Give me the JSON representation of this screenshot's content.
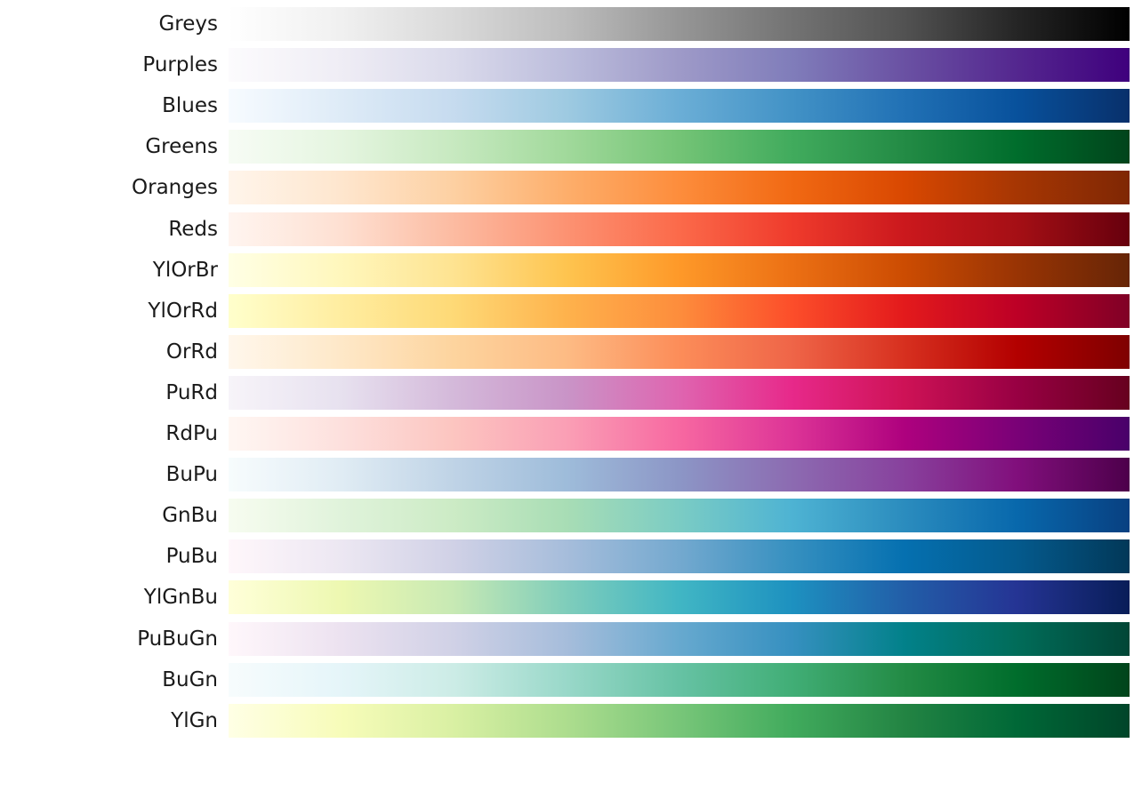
{
  "chart_data": {
    "type": "heatmap",
    "title": "",
    "grid": false,
    "value_range": [
      0,
      1
    ],
    "colormaps": [
      {
        "name": "Greys",
        "colors": [
          "#ffffff",
          "#f0f0f0",
          "#d9d9d9",
          "#bdbdbd",
          "#969696",
          "#737373",
          "#525252",
          "#252525",
          "#000000"
        ]
      },
      {
        "name": "Purples",
        "colors": [
          "#fcfbfd",
          "#efedf5",
          "#dadaeb",
          "#bcbddc",
          "#9e9ac8",
          "#807dba",
          "#6a51a3",
          "#54278f",
          "#3f007d"
        ]
      },
      {
        "name": "Blues",
        "colors": [
          "#f7fbff",
          "#deebf7",
          "#c6dbef",
          "#9ecae1",
          "#6baed6",
          "#4292c6",
          "#2171b5",
          "#08519c",
          "#08306b"
        ]
      },
      {
        "name": "Greens",
        "colors": [
          "#f7fcf5",
          "#e5f5e0",
          "#c7e9c0",
          "#a1d99b",
          "#74c476",
          "#41ab5d",
          "#238b45",
          "#006d2c",
          "#00441b"
        ]
      },
      {
        "name": "Oranges",
        "colors": [
          "#fff5eb",
          "#fee6ce",
          "#fdd0a2",
          "#fdae6b",
          "#fd8d3c",
          "#f16913",
          "#d94801",
          "#a63603",
          "#7f2704"
        ]
      },
      {
        "name": "Reds",
        "colors": [
          "#fff5f0",
          "#fee0d2",
          "#fcbba1",
          "#fc9272",
          "#fb6a4a",
          "#ef3b2c",
          "#cb181d",
          "#a50f15",
          "#67000d"
        ]
      },
      {
        "name": "YlOrBr",
        "colors": [
          "#ffffe5",
          "#fff7bc",
          "#fee391",
          "#fec44f",
          "#fe9929",
          "#ec7014",
          "#cc4c02",
          "#993404",
          "#662506"
        ]
      },
      {
        "name": "YlOrRd",
        "colors": [
          "#ffffcc",
          "#ffeda0",
          "#fed976",
          "#feb24c",
          "#fd8d3c",
          "#fc4e2a",
          "#e31a1c",
          "#bd0026",
          "#800026"
        ]
      },
      {
        "name": "OrRd",
        "colors": [
          "#fff7ec",
          "#fee8c8",
          "#fdd49e",
          "#fdbb84",
          "#fc8d59",
          "#ef6548",
          "#d7301f",
          "#b30000",
          "#7f0000"
        ]
      },
      {
        "name": "PuRd",
        "colors": [
          "#f7f4f9",
          "#e7e1ef",
          "#d4b9da",
          "#c994c7",
          "#df65b0",
          "#e7298a",
          "#ce1256",
          "#980043",
          "#67001f"
        ]
      },
      {
        "name": "RdPu",
        "colors": [
          "#fff7f3",
          "#fde0dd",
          "#fcc5c0",
          "#fa9fb5",
          "#f768a1",
          "#dd3497",
          "#ae017e",
          "#7a0177",
          "#49006a"
        ]
      },
      {
        "name": "BuPu",
        "colors": [
          "#f7fcfd",
          "#e0ecf4",
          "#bfd3e6",
          "#9ebcda",
          "#8c96c6",
          "#8c6bb1",
          "#88419d",
          "#810f7c",
          "#4d004b"
        ]
      },
      {
        "name": "GnBu",
        "colors": [
          "#f7fcf0",
          "#e0f3db",
          "#ccebc5",
          "#a8ddb5",
          "#7bccc4",
          "#4eb3d3",
          "#2b8cbe",
          "#0868ac",
          "#084081"
        ]
      },
      {
        "name": "PuBu",
        "colors": [
          "#fff7fb",
          "#ece7f2",
          "#d0d1e6",
          "#a6bddb",
          "#74a9cf",
          "#3690c0",
          "#0570b0",
          "#045a8d",
          "#023858"
        ]
      },
      {
        "name": "YlGnBu",
        "colors": [
          "#ffffd9",
          "#edf8b1",
          "#c7e9b4",
          "#7fcdbb",
          "#41b6c4",
          "#1d91c0",
          "#225ea8",
          "#253494",
          "#081d58"
        ]
      },
      {
        "name": "PuBuGn",
        "colors": [
          "#fff7fb",
          "#ece2f0",
          "#d0d1e6",
          "#a6bddb",
          "#67a9cf",
          "#3690c0",
          "#02818a",
          "#016c59",
          "#014636"
        ]
      },
      {
        "name": "BuGn",
        "colors": [
          "#f7fcfd",
          "#e5f5f9",
          "#ccece6",
          "#99d8c9",
          "#66c2a4",
          "#41ae76",
          "#238b45",
          "#006d2c",
          "#00441b"
        ]
      },
      {
        "name": "YlGn",
        "colors": [
          "#ffffe5",
          "#f7fcb9",
          "#d9f0a3",
          "#addd8e",
          "#78c679",
          "#41ab5d",
          "#238443",
          "#006837",
          "#004529"
        ]
      }
    ]
  }
}
